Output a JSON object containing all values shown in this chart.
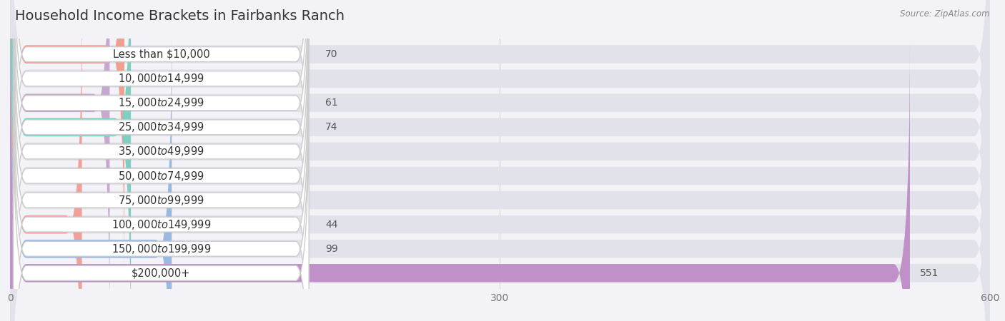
{
  "title": "Household Income Brackets in Fairbanks Ranch",
  "source": "Source: ZipAtlas.com",
  "categories": [
    "Less than $10,000",
    "$10,000 to $14,999",
    "$15,000 to $24,999",
    "$25,000 to $34,999",
    "$35,000 to $49,999",
    "$50,000 to $74,999",
    "$75,000 to $99,999",
    "$100,000 to $149,999",
    "$150,000 to $199,999",
    "$200,000+"
  ],
  "values": [
    70,
    0,
    61,
    74,
    0,
    0,
    0,
    44,
    99,
    551
  ],
  "bar_colors": [
    "#f0a090",
    "#a0b8d8",
    "#c8a8d0",
    "#7ecec4",
    "#b0acd8",
    "#f0a0b4",
    "#f8c890",
    "#f0a098",
    "#9ab8e0",
    "#c090c8"
  ],
  "xlim": [
    0,
    600
  ],
  "xticks": [
    0,
    300,
    600
  ],
  "background_color": "#f2f2f7",
  "bar_bg_color": "#e2e2ea",
  "title_fontsize": 14,
  "tick_fontsize": 10,
  "label_fontsize": 10.5,
  "value_fontsize": 10
}
